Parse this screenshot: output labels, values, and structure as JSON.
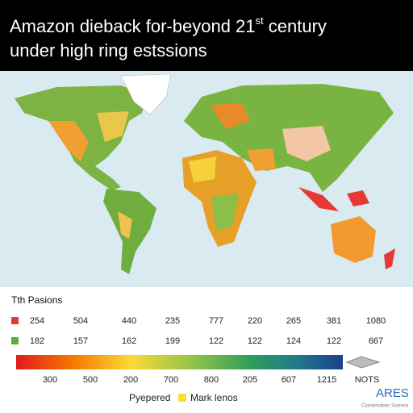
{
  "header": {
    "title_line1": "Amazon dieback for-beyond 21",
    "title_sup": "st",
    "title_line1_end": " century",
    "title_line2": "under high ring estssions"
  },
  "table": {
    "title": "Tth Pasions",
    "rows": [
      [
        "254",
        "504",
        "440",
        "235",
        "777",
        "220",
        "265",
        "381",
        "1080"
      ],
      [
        "182",
        "157",
        "162",
        "199",
        "122",
        "122",
        "124",
        "122",
        "667"
      ]
    ]
  },
  "colorbar": {
    "labels": [
      "300",
      "500",
      "200",
      "700",
      "800",
      "205",
      "607",
      "1215",
      "NOTS"
    ]
  },
  "legend": {
    "items": [
      "Pyepered",
      "Mark lenos"
    ]
  },
  "brand": {
    "name": "ARES",
    "subtitle": "Conservation Science"
  }
}
